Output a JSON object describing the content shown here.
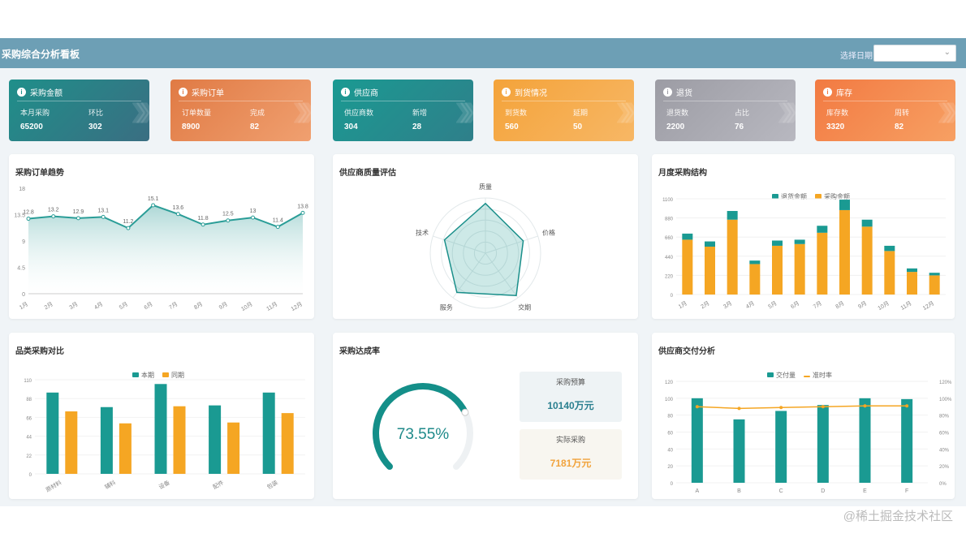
{
  "header": {
    "title": "采购综合分析看板",
    "selector_label": "选择日期",
    "selector_value": ""
  },
  "stats": [
    {
      "name": "采购金额",
      "label1": "本月采购",
      "value1": "65200",
      "label2": "环比",
      "value2": "302",
      "color": "#1f8f8a",
      "color2": "#3a6e82"
    },
    {
      "name": "采购订单",
      "label1": "订单数量",
      "value1": "8900",
      "label2": "完成",
      "value2": "82",
      "color": "#e07a44",
      "color2": "#f0a070"
    },
    {
      "name": "供应商",
      "label1": "供应商数",
      "value1": "304",
      "label2": "新增",
      "value2": "28",
      "color": "#1a9a92",
      "color2": "#2f7f8a"
    },
    {
      "name": "到货情况",
      "label1": "到货数",
      "value1": "560",
      "label2": "延期",
      "value2": "50",
      "color": "#f4a33a",
      "color2": "#f7b765"
    },
    {
      "name": "退货",
      "label1": "退货数",
      "value1": "2200",
      "label2": "占比",
      "value2": "76",
      "color": "#9c9ca4",
      "color2": "#b8b8c0"
    },
    {
      "name": "库存",
      "label1": "库存数",
      "value1": "3320",
      "label2": "周转",
      "value2": "82",
      "color": "#f27a42",
      "color2": "#f7a063"
    }
  ],
  "panels": {
    "trend_title": "采购订单趋势",
    "radar_title": "供应商质量评估",
    "stack_title": "月度采购结构",
    "group_title": "品类采购对比",
    "gauge_title": "采购达成率",
    "combo_title": "供应商交付分析"
  },
  "gauge": {
    "value_text": "73.55%",
    "value": 73.55
  },
  "kpis": [
    {
      "label": "采购预算",
      "value": "10140万元",
      "color": "#2a7f8f",
      "bg": "#eef3f5"
    },
    {
      "label": "实际采购",
      "value": "7181万元",
      "color": "#f1a33c",
      "bg": "#f8f6f0"
    }
  ],
  "watermark": "@稀土掘金技术社区",
  "colors": {
    "teal": "#1a9a92",
    "orange": "#f5a623",
    "area": "#9fd1cf"
  },
  "chart_data": [
    {
      "type": "area",
      "title": "采购订单趋势",
      "categories": [
        "1月",
        "2月",
        "3月",
        "4月",
        "5月",
        "6月",
        "7月",
        "8月",
        "9月",
        "10月",
        "11月",
        "12月"
      ],
      "values": [
        12.8,
        13.2,
        12.9,
        13.1,
        11.2,
        15.1,
        13.6,
        11.8,
        12.5,
        13.0,
        11.4,
        13.8
      ],
      "ylim": [
        0,
        18
      ]
    },
    {
      "type": "radar",
      "title": "供应商质量评估",
      "indicators": [
        "质量",
        "价格",
        "交期",
        "服务",
        "技术"
      ],
      "values": [
        90,
        72,
        95,
        88,
        78
      ],
      "max": 100
    },
    {
      "type": "bar",
      "title": "月度采购结构",
      "categories": [
        "1月",
        "2月",
        "3月",
        "4月",
        "5月",
        "6月",
        "7月",
        "8月",
        "9月",
        "10月",
        "11月",
        "12月"
      ],
      "series": [
        {
          "name": "采购金额",
          "values": [
            630,
            550,
            860,
            350,
            560,
            580,
            710,
            970,
            780,
            500,
            260,
            220
          ]
        },
        {
          "name": "退货金额",
          "values": [
            70,
            60,
            100,
            40,
            60,
            50,
            80,
            120,
            80,
            60,
            40,
            30
          ]
        }
      ],
      "stacked": true,
      "ylim": [
        0,
        1100
      ]
    },
    {
      "type": "bar",
      "title": "品类采购对比",
      "categories": [
        "原材料",
        "辅料",
        "设备",
        "配件",
        "包装"
      ],
      "series": [
        {
          "name": "本期",
          "values": [
            95,
            78,
            105,
            80,
            95
          ]
        },
        {
          "name": "同期",
          "values": [
            73,
            59,
            79,
            60,
            71
          ]
        }
      ],
      "ylim": [
        0,
        110
      ]
    },
    {
      "type": "bar",
      "title": "供应商交付分析",
      "categories": [
        "A",
        "B",
        "C",
        "D",
        "E",
        "F"
      ],
      "series": [
        {
          "name": "交付量",
          "values": [
            100,
            75,
            85,
            92,
            100,
            99
          ]
        },
        {
          "name": "准时率",
          "values": [
            90,
            88,
            89,
            90,
            91,
            91
          ]
        }
      ],
      "ylim": [
        0,
        120
      ]
    }
  ]
}
